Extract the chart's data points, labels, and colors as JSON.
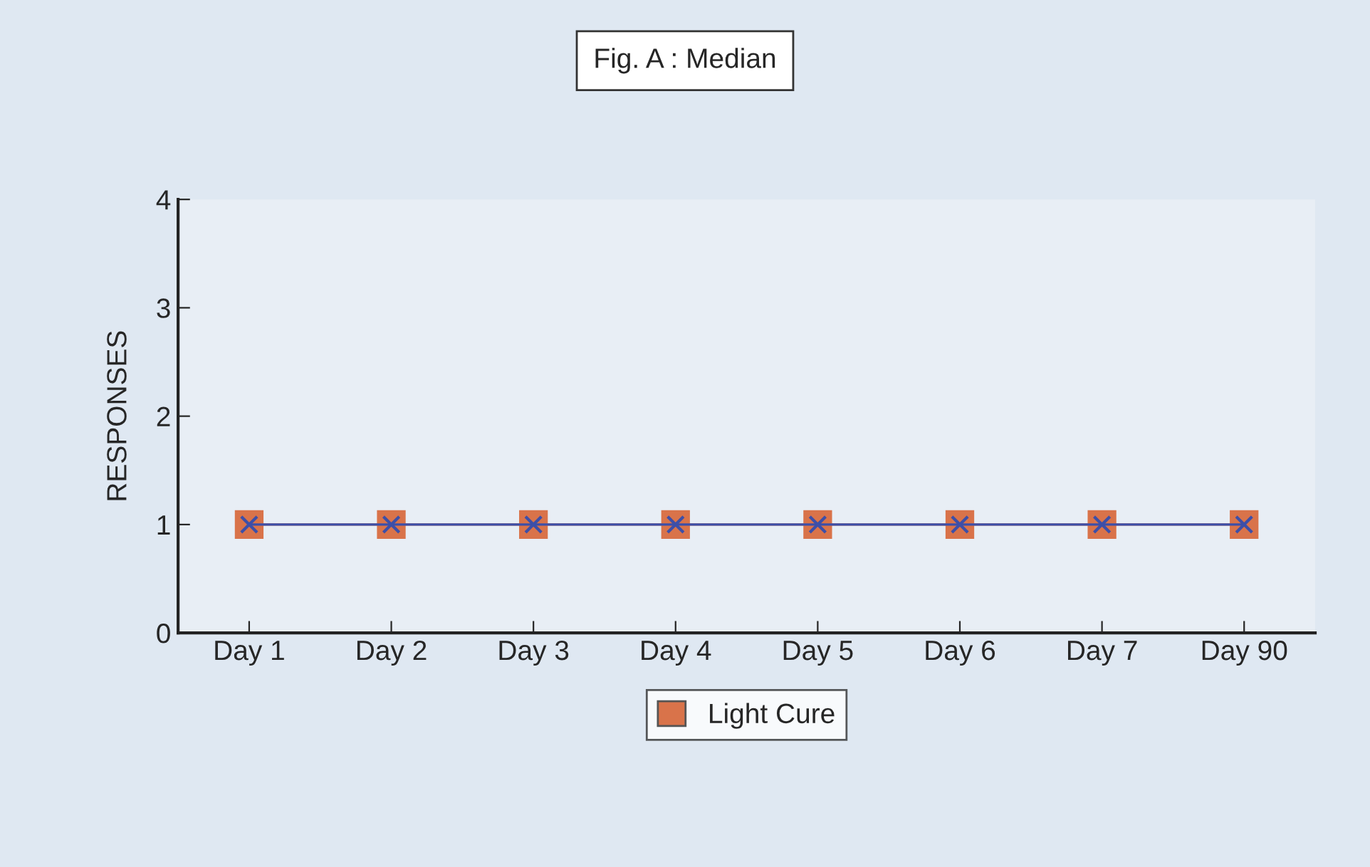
{
  "chart_data": {
    "type": "line",
    "title": "Fig. A : Median",
    "ylabel": "RESPONSES",
    "categories": [
      "Day 1",
      "Day 2",
      "Day 3",
      "Day 4",
      "Day 5",
      "Day 6",
      "Day 7",
      "Day 90"
    ],
    "series": [
      {
        "name": "Light Cure",
        "color": "#d9734a",
        "marker": "square",
        "values": [
          1,
          1,
          1,
          1,
          1,
          1,
          1,
          1
        ]
      },
      {
        "color": "#3d4fa8",
        "marker": "cross",
        "values": [
          1,
          1,
          1,
          1,
          1,
          1,
          1,
          1
        ]
      }
    ],
    "ylim": [
      0,
      4
    ],
    "yticks": [
      0,
      1,
      2,
      3,
      4
    ],
    "grid": false,
    "legend": "bottom"
  }
}
